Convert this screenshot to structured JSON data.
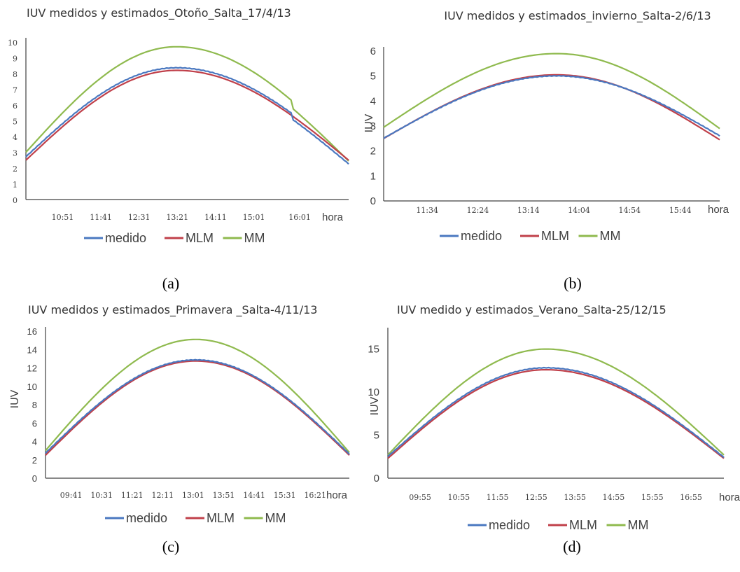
{
  "colors": {
    "medido": "#4a78c0",
    "MLM": "#c0404a",
    "MM": "#8fba4e"
  },
  "chart_data": [
    {
      "type": "line",
      "title": "IUV medidos y estimados_Otoño_Salta_17/4/13",
      "caption": "(a)",
      "xlabel": "hora",
      "ylabel": "",
      "categories": [
        "10:51",
        "11:41",
        "12:31",
        "13:21",
        "14:11",
        "15:01",
        "16:01"
      ],
      "yticks": [
        "0",
        "1",
        "2",
        "3",
        "4",
        "5",
        "6",
        "7",
        "8",
        "9",
        "10"
      ],
      "ylim": [
        0,
        10
      ],
      "x_range": [
        "10:03",
        "17:05"
      ],
      "grid": false,
      "legend_position": "bottom",
      "series": [
        {
          "name": "medido",
          "peak_time": "13:20",
          "peak": 8.35,
          "start": 2.7,
          "end": 2.6,
          "drop_at": "15:51",
          "drop": 0.35
        },
        {
          "name": "MLM",
          "peak_time": "13:20",
          "peak": 8.2,
          "start": 2.5,
          "end": 2.5
        },
        {
          "name": "MM",
          "peak_time": "13:20",
          "peak": 9.7,
          "start": 3.0,
          "end": 2.9,
          "drop_at": "15:51",
          "drop": 0.45
        }
      ]
    },
    {
      "type": "line",
      "title": "IUV medidos y estimados_invierno_Salta-2/6/13",
      "caption": "(b)",
      "xlabel": "hora",
      "ylabel": "IUV",
      "categories": [
        "11:34",
        "12:24",
        "13:14",
        "14:04",
        "14:54",
        "15:44"
      ],
      "yticks": [
        "0",
        "1",
        "2",
        "3",
        "4",
        "5",
        "6"
      ],
      "ylim": [
        0,
        6
      ],
      "x_range": [
        "10:51",
        "16:23"
      ],
      "grid": false,
      "legend_position": "bottom",
      "series": [
        {
          "name": "medido",
          "peak_time": "13:42",
          "peak": 5.0,
          "start": 2.5,
          "end": 2.6
        },
        {
          "name": "MLM",
          "peak_time": "13:42",
          "peak": 5.05,
          "start": 2.5,
          "end": 2.45
        },
        {
          "name": "MM",
          "peak_time": "13:42",
          "peak": 5.9,
          "start": 2.95,
          "end": 2.9
        }
      ]
    },
    {
      "type": "line",
      "title": "IUV medidos y estimados_Primavera _Salta-4/11/13",
      "caption": "(c)",
      "xlabel": "hora",
      "ylabel": "IUV",
      "categories": [
        "09:41",
        "10:31",
        "11:21",
        "12:11",
        "13:01",
        "13:51",
        "14:41",
        "15:31",
        "16:21"
      ],
      "yticks": [
        "0",
        "2",
        "4",
        "6",
        "8",
        "10",
        "12",
        "14",
        "16"
      ],
      "ylim": [
        0,
        16
      ],
      "x_range": [
        "08:59",
        "17:17"
      ],
      "grid": false,
      "legend_position": "bottom",
      "series": [
        {
          "name": "medido",
          "peak_time": "13:05",
          "peak": 12.85,
          "start": 2.7,
          "end": 2.6
        },
        {
          "name": "MLM",
          "peak_time": "13:05",
          "peak": 12.75,
          "start": 2.5,
          "end": 2.5
        },
        {
          "name": "MM",
          "peak_time": "13:05",
          "peak": 15.1,
          "start": 3.0,
          "end": 2.8
        }
      ]
    },
    {
      "type": "line",
      "title": "IUV medido y estimados_Verano_Salta-25/12/15",
      "caption": "(d)",
      "xlabel": "hora",
      "ylabel": "IUV",
      "categories": [
        "09:55",
        "10:55",
        "11:55",
        "12:55",
        "13:55",
        "14:55",
        "15:55",
        "16:55"
      ],
      "yticks": [
        "0",
        "5",
        "10",
        "15"
      ],
      "ylim": [
        0,
        17
      ],
      "x_range": [
        "09:05",
        "17:46"
      ],
      "grid": false,
      "legend_position": "bottom",
      "series": [
        {
          "name": "medido",
          "peak_time": "13:10",
          "peak": 12.8,
          "start": 2.5,
          "end": 2.4
        },
        {
          "name": "MLM",
          "peak_time": "13:10",
          "peak": 12.6,
          "start": 2.3,
          "end": 2.3
        },
        {
          "name": "MM",
          "peak_time": "13:10",
          "peak": 15.0,
          "start": 2.7,
          "end": 2.7
        }
      ]
    }
  ]
}
